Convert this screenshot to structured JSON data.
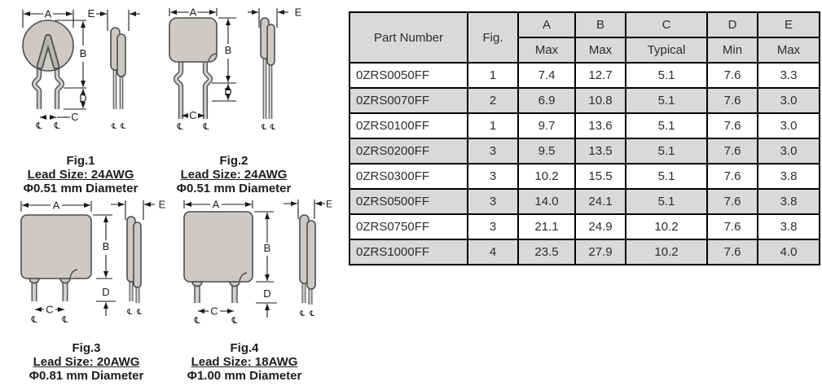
{
  "dims": {
    "a": "A",
    "b": "B",
    "c": "C",
    "d": "D",
    "e": "E",
    "centerline": "℄"
  },
  "figures": [
    {
      "title": "Fig.1",
      "lead_size": "Lead Size: 24AWG",
      "diameter": "Φ0.51 mm Diameter"
    },
    {
      "title": "Fig.2",
      "lead_size": "Lead Size: 24AWG",
      "diameter": "Φ0.51 mm Diameter"
    },
    {
      "title": "Fig.3",
      "lead_size": "Lead Size: 20AWG",
      "diameter": "Φ0.81 mm Diameter"
    },
    {
      "title": "Fig.4",
      "lead_size": "Lead Size: 18AWG",
      "diameter": "Φ1.00 mm Diameter"
    }
  ],
  "table": {
    "header": {
      "part_number": "Part Number",
      "fig": "Fig.",
      "col_letters": [
        "A",
        "B",
        "C",
        "D",
        "E"
      ],
      "col_subs": [
        "Max",
        "Max",
        "Typical",
        "Min",
        "Max"
      ]
    },
    "rows": [
      {
        "part_number": "0ZRS0050FF",
        "fig": "1",
        "a": "7.4",
        "b": "12.7",
        "c": "5.1",
        "d": "7.6",
        "e": "3.3"
      },
      {
        "part_number": "0ZRS0070FF",
        "fig": "2",
        "a": "6.9",
        "b": "10.8",
        "c": "5.1",
        "d": "7.6",
        "e": "3.0"
      },
      {
        "part_number": "0ZRS0100FF",
        "fig": "1",
        "a": "9.7",
        "b": "13.6",
        "c": "5.1",
        "d": "7.6",
        "e": "3.0"
      },
      {
        "part_number": "0ZRS0200FF",
        "fig": "3",
        "a": "9.5",
        "b": "13.5",
        "c": "5.1",
        "d": "7.6",
        "e": "3.0"
      },
      {
        "part_number": "0ZRS0300FF",
        "fig": "3",
        "a": "10.2",
        "b": "15.5",
        "c": "5.1",
        "d": "7.6",
        "e": "3.8"
      },
      {
        "part_number": "0ZRS0500FF",
        "fig": "3",
        "a": "14.0",
        "b": "24.1",
        "c": "5.1",
        "d": "7.6",
        "e": "3.8"
      },
      {
        "part_number": "0ZRS0750FF",
        "fig": "3",
        "a": "21.1",
        "b": "24.9",
        "c": "10.2",
        "d": "7.6",
        "e": "3.8"
      },
      {
        "part_number": "0ZRS1000FF",
        "fig": "4",
        "a": "23.5",
        "b": "27.9",
        "c": "10.2",
        "d": "7.6",
        "e": "4.0"
      }
    ]
  },
  "colors": {
    "table_header_bg": "#d9d9d9",
    "table_row_alt_bg": "#d9d9d9",
    "table_border": "#000000",
    "figure_body_fill": "#ccc9c6",
    "figure_outline": "#4d4d4d",
    "dimension_line": "#1a1a1a"
  }
}
